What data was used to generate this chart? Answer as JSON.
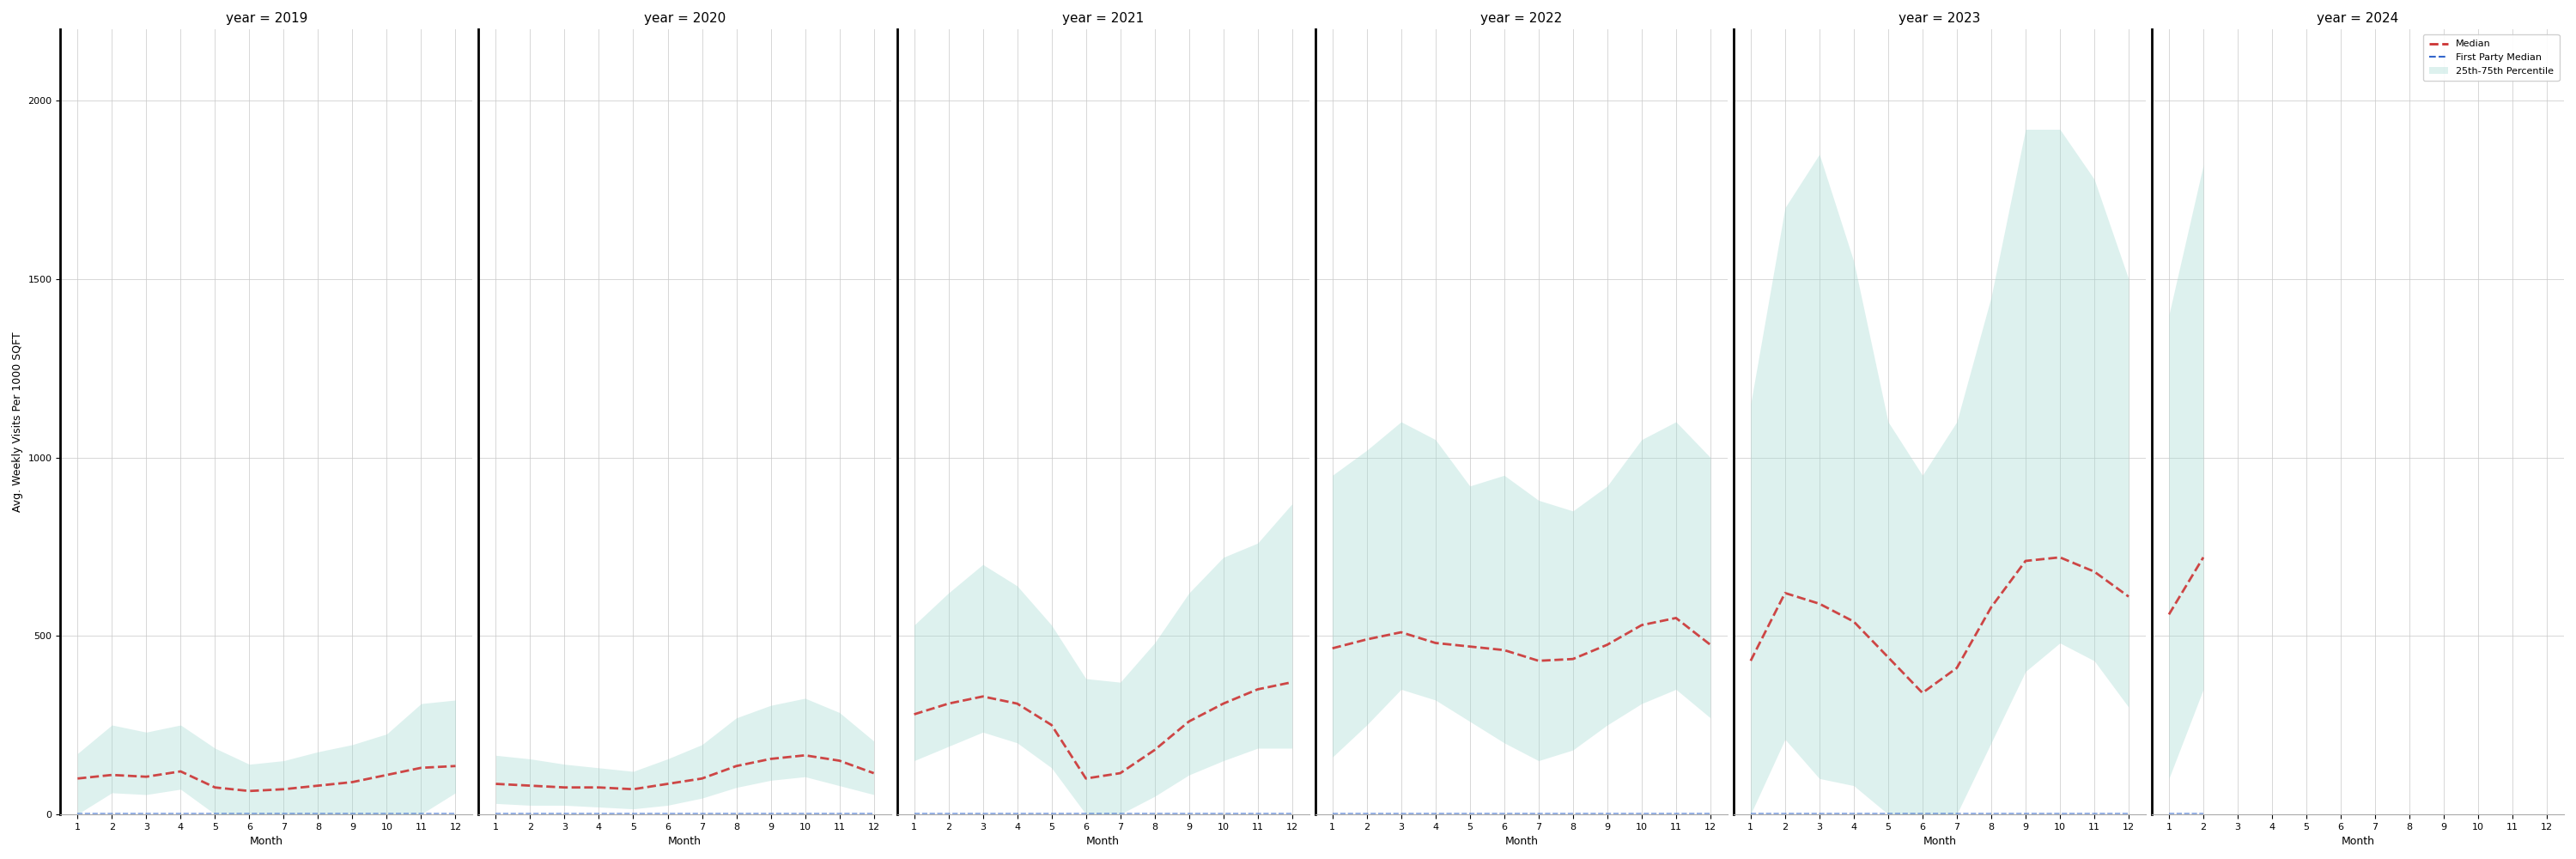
{
  "years": [
    2019,
    2020,
    2021,
    2022,
    2023,
    2024
  ],
  "months": [
    1,
    2,
    3,
    4,
    5,
    6,
    7,
    8,
    9,
    10,
    11,
    12
  ],
  "months_2024": [
    1,
    2,
    3,
    4,
    5,
    6,
    7,
    8,
    9,
    10,
    11,
    12
  ],
  "median": {
    "2019": [
      100,
      110,
      105,
      120,
      75,
      65,
      70,
      80,
      90,
      110,
      130,
      135
    ],
    "2020": [
      85,
      80,
      75,
      75,
      70,
      85,
      100,
      135,
      155,
      165,
      150,
      115
    ],
    "2021": [
      280,
      310,
      330,
      310,
      250,
      100,
      115,
      180,
      260,
      310,
      350,
      370
    ],
    "2022": [
      465,
      490,
      510,
      480,
      470,
      460,
      430,
      435,
      475,
      530,
      550,
      475
    ],
    "2023": [
      430,
      620,
      590,
      540,
      440,
      340,
      410,
      580,
      710,
      720,
      680,
      610
    ],
    "2024": [
      560,
      720,
      0,
      0,
      0,
      0,
      0,
      0,
      0,
      0,
      0,
      0
    ]
  },
  "first_party_median": {
    "2019": [
      2,
      2,
      2,
      2,
      2,
      2,
      2,
      2,
      2,
      2,
      2,
      2
    ],
    "2020": [
      2,
      2,
      2,
      2,
      2,
      2,
      2,
      2,
      2,
      2,
      2,
      2
    ],
    "2021": [
      2,
      2,
      2,
      2,
      2,
      2,
      2,
      2,
      2,
      2,
      2,
      2
    ],
    "2022": [
      2,
      2,
      2,
      2,
      2,
      2,
      2,
      2,
      2,
      2,
      2,
      2
    ],
    "2023": [
      2,
      2,
      2,
      2,
      2,
      2,
      2,
      2,
      2,
      2,
      2,
      2
    ],
    "2024": [
      2,
      2,
      0,
      0,
      0,
      0,
      0,
      0,
      0,
      0,
      0,
      0
    ]
  },
  "p25": {
    "2019": [
      0,
      60,
      55,
      70,
      0,
      0,
      0,
      0,
      0,
      0,
      0,
      60
    ],
    "2020": [
      30,
      25,
      25,
      20,
      15,
      25,
      45,
      75,
      95,
      105,
      80,
      55
    ],
    "2021": [
      150,
      190,
      230,
      200,
      130,
      0,
      0,
      50,
      110,
      150,
      185,
      185
    ],
    "2022": [
      160,
      250,
      350,
      320,
      260,
      200,
      150,
      180,
      250,
      310,
      350,
      270
    ],
    "2023": [
      0,
      210,
      100,
      80,
      0,
      0,
      0,
      200,
      400,
      480,
      430,
      300
    ],
    "2024": [
      100,
      350,
      0,
      0,
      0,
      0,
      0,
      0,
      0,
      0,
      0,
      0
    ]
  },
  "p75": {
    "2019": [
      170,
      250,
      230,
      250,
      185,
      140,
      150,
      175,
      195,
      225,
      310,
      320
    ],
    "2020": [
      165,
      155,
      140,
      130,
      120,
      155,
      195,
      270,
      305,
      325,
      285,
      205
    ],
    "2021": [
      530,
      620,
      700,
      640,
      530,
      380,
      370,
      480,
      620,
      720,
      760,
      870
    ],
    "2022": [
      950,
      1020,
      1100,
      1050,
      920,
      950,
      880,
      850,
      920,
      1050,
      1100,
      1000
    ],
    "2023": [
      1150,
      1700,
      1850,
      1550,
      1100,
      950,
      1100,
      1450,
      1920,
      1920,
      1780,
      1500
    ],
    "2024": [
      1400,
      1820,
      0,
      0,
      0,
      0,
      0,
      0,
      0,
      0,
      0,
      0
    ]
  },
  "fill_color": "#9fd8d0",
  "fill_alpha": 0.35,
  "median_color": "#cc3333",
  "fp_median_color": "#3366cc",
  "background_color": "#ffffff",
  "grid_color": "#cccccc",
  "ylabel": "Avg. Weekly Visits Per 1000 SQFT",
  "xlabel": "Month",
  "ylim": [
    0,
    2200
  ],
  "yticks": [
    0,
    500,
    1000,
    1500,
    2000
  ],
  "xticks": [
    1,
    2,
    3,
    4,
    5,
    6,
    7,
    8,
    9,
    10,
    11,
    12
  ],
  "legend_labels": [
    "Median",
    "First Party Median",
    "25th-75th Percentile"
  ],
  "title_fontsize": 11,
  "label_fontsize": 9,
  "tick_fontsize": 8,
  "months_per_year": {
    "2019": 12,
    "2020": 12,
    "2021": 12,
    "2022": 12,
    "2023": 12,
    "2024": 2
  }
}
